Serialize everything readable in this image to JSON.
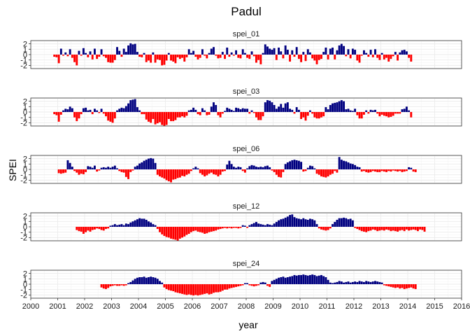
{
  "chart_data": {
    "type": "bar",
    "title": "Padul",
    "xlabel": "year",
    "ylabel": "SPEI",
    "xlim": [
      2000,
      2016
    ],
    "ylim": [
      -2.6,
      2.6
    ],
    "x_ticks": [
      "2000",
      "2001",
      "2002",
      "2003",
      "2004",
      "2005",
      "2006",
      "2007",
      "2008",
      "2009",
      "2010",
      "2011",
      "2012",
      "2013",
      "2014",
      "2015",
      "2016"
    ],
    "y_ticks": [
      "2",
      "1",
      "0",
      "-1",
      "-2"
    ],
    "grid": true,
    "colors": {
      "positive": "#000080",
      "negative": "#ff0000"
    },
    "monthly_start": "2000-11",
    "panels": [
      {
        "name": "spei_01",
        "values": [
          -0.4,
          -0.5,
          -1.6,
          1.1,
          -0.2,
          0.4,
          -0.3,
          1.0,
          -0.6,
          -1.4,
          -2.0,
          0.7,
          -0.2,
          1.2,
          0.3,
          -0.5,
          0.6,
          -0.9,
          1.1,
          -0.8,
          -0.4,
          1.0,
          -0.3,
          -0.6,
          -1.4,
          -1.5,
          -1.5,
          -1.0,
          1.4,
          0.7,
          -0.4,
          1.1,
          0.5,
          1.7,
          2.1,
          1.9,
          2.0,
          0.5,
          -0.4,
          -0.5,
          0.3,
          -1.4,
          -1.1,
          -1.5,
          0.4,
          -1.5,
          -0.9,
          -1.0,
          -2.0,
          -1.9,
          -1.1,
          0.3,
          -1.1,
          -1.3,
          -1.6,
          -0.5,
          -0.8,
          -0.6,
          -1.3,
          -0.5,
          1.0,
          0.3,
          0.7,
          -0.4,
          -0.9,
          -0.6,
          1.0,
          -0.2,
          -0.7,
          0.3,
          1.1,
          1.4,
          -0.2,
          -0.7,
          -0.6,
          0.5,
          -0.8,
          1.3,
          -0.4,
          0.4,
          -0.2,
          0.8,
          -0.6,
          -0.7,
          1.0,
          0.3,
          -0.6,
          -0.8,
          0.6,
          -0.3,
          -1.5,
          -1.0,
          -1.8,
          0.3,
          1.9,
          1.5,
          1.1,
          0.9,
          1.2,
          -1.0,
          1.3,
          0.6,
          -0.7,
          1.7,
          0.9,
          -1.3,
          0.8,
          -0.4,
          1.4,
          -0.8,
          -1.4,
          0.5,
          -1.2,
          1.0,
          0.4,
          -0.7,
          -1.1,
          -1.8,
          -1.0,
          -0.8,
          0.5,
          1.3,
          -0.9,
          1.1,
          1.3,
          -0.9,
          0.8,
          1.7,
          2.0,
          1.6,
          -0.3,
          1.0,
          -0.7,
          1.1,
          0.9,
          -1.1,
          -1.5,
          -0.2,
          0.8,
          0.3,
          -0.4,
          0.9,
          -0.5,
          1.0,
          -0.6,
          -1.0,
          0.3,
          -0.9,
          -0.6,
          -1.3,
          -0.8,
          -0.3,
          0.5,
          -1.1,
          0.4,
          0.8,
          0.9,
          0.6,
          -0.6,
          -1.3
        ]
      },
      {
        "name": "spei_03",
        "values": [
          -0.4,
          -0.6,
          -1.8,
          -0.5,
          0.3,
          0.6,
          0.5,
          1.0,
          0.7,
          -1.0,
          -1.7,
          -1.2,
          -0.4,
          0.7,
          0.8,
          0.3,
          0.4,
          -0.4,
          0.6,
          0.3,
          -0.2,
          0.6,
          -0.3,
          -0.8,
          -1.6,
          -1.8,
          -2.0,
          -1.2,
          0.3,
          0.6,
          0.8,
          0.7,
          1.1,
          1.6,
          2.2,
          2.3,
          2.4,
          0.9,
          0.3,
          -0.4,
          -0.4,
          -1.4,
          -1.8,
          -2.0,
          -1.3,
          -2.3,
          -2.1,
          -1.9,
          -2.4,
          -2.6,
          -2.4,
          -1.3,
          -1.7,
          -1.7,
          -1.5,
          -1.0,
          -1.0,
          -0.8,
          -1.0,
          -0.7,
          0.3,
          0.4,
          0.8,
          0.4,
          -0.4,
          -0.6,
          0.7,
          0.3,
          -0.6,
          -0.5,
          1.0,
          1.8,
          1.3,
          -0.6,
          -1.0,
          -0.3,
          0.2,
          0.8,
          0.6,
          0.4,
          0.2,
          0.8,
          0.7,
          0.5,
          0.7,
          0.6,
          0.6,
          -0.3,
          0.3,
          -0.2,
          -1.0,
          -1.5,
          -1.5,
          -0.8,
          1.8,
          2.2,
          2.1,
          1.8,
          1.3,
          0.6,
          1.0,
          1.5,
          0.8,
          1.6,
          1.8,
          0.6,
          0.4,
          -0.3,
          0.9,
          0.4,
          -1.3,
          -1.0,
          -1.6,
          -0.7,
          0.3,
          -0.3,
          -1.0,
          -1.2,
          -1.2,
          -1.0,
          -0.8,
          0.9,
          0.5,
          1.3,
          1.6,
          1.7,
          1.8,
          2.0,
          2.2,
          2.0,
          0.5,
          0.6,
          0.3,
          0.2,
          0.6,
          -0.6,
          -1.2,
          -1.2,
          -0.5,
          0.3,
          -0.3,
          0.4,
          0.3,
          0.4,
          -0.3,
          -0.8,
          -0.5,
          -0.7,
          -0.8,
          -1.0,
          -0.9,
          -0.7,
          -0.3,
          -0.3,
          -0.3,
          0.5,
          0.6,
          1.0,
          0.3,
          -1.0
        ]
      },
      {
        "name": "spei_06",
        "values": [
          null,
          null,
          -0.7,
          -0.8,
          -0.7,
          -0.6,
          1.7,
          1.2,
          0.5,
          -0.3,
          -0.6,
          -1.0,
          -0.8,
          -0.9,
          -0.5,
          0.6,
          0.5,
          0.3,
          0.7,
          -0.4,
          -0.2,
          0.3,
          0.4,
          0.3,
          0.5,
          0.3,
          0.5,
          0.7,
          0.2,
          -0.3,
          -0.5,
          -0.6,
          -1.4,
          -1.8,
          -0.5,
          -0.2,
          0.5,
          0.7,
          1.1,
          1.3,
          1.6,
          1.8,
          2.0,
          2.1,
          2.0,
          1.2,
          -1.0,
          -1.3,
          -1.5,
          -1.7,
          -2.0,
          -2.2,
          -2.4,
          -1.9,
          -1.8,
          -1.6,
          -1.5,
          -1.2,
          -1.3,
          -1.0,
          -0.8,
          -0.3,
          0.2,
          0.5,
          0.2,
          -0.7,
          -1.0,
          -1.3,
          -1.1,
          -0.8,
          -0.6,
          -0.9,
          -1.0,
          -1.3,
          -1.0,
          -0.4,
          -0.3,
          0.9,
          1.6,
          1.0,
          0.5,
          0.3,
          0.5,
          0.4,
          -0.3,
          -0.6,
          0.2,
          0.6,
          0.8,
          0.7,
          0.5,
          0.4,
          0.5,
          0.4,
          0.6,
          0.7,
          0.4,
          -0.2,
          -0.5,
          -1.0,
          -1.4,
          -1.5,
          -0.5,
          1.0,
          1.3,
          1.5,
          1.7,
          1.8,
          1.7,
          1.6,
          1.4,
          -0.4,
          -0.3,
          0.3,
          0.7,
          0.6,
          0.2,
          -0.8,
          -1.0,
          -1.3,
          -1.4,
          -1.5,
          -1.3,
          -1.0,
          -0.8,
          -0.3,
          -0.6,
          2.3,
          1.8,
          1.6,
          1.5,
          1.3,
          1.1,
          1.0,
          0.8,
          0.5,
          0.4,
          -0.4,
          -0.3,
          -0.5,
          -0.6,
          -0.5,
          -0.3,
          -0.4,
          -0.5,
          -0.5,
          -0.3,
          -0.4,
          -0.5,
          -0.3,
          -0.4,
          -0.2,
          -0.3,
          -0.4,
          -0.3,
          -0.5,
          -0.4,
          -0.3,
          0.4,
          0.3,
          -0.4,
          -0.5
        ]
      },
      {
        "name": "spei_12",
        "values": [
          null,
          null,
          null,
          null,
          null,
          null,
          null,
          null,
          null,
          null,
          -0.6,
          -0.8,
          -0.9,
          -1.3,
          -1.0,
          -0.7,
          -0.9,
          -0.6,
          -0.5,
          -0.3,
          -0.4,
          -0.6,
          -0.7,
          -0.4,
          -0.3,
          0.2,
          0.3,
          0.5,
          0.3,
          0.4,
          0.5,
          0.3,
          0.6,
          0.5,
          0.8,
          1.0,
          1.2,
          1.4,
          1.6,
          1.5,
          1.5,
          1.3,
          1.0,
          0.8,
          0.5,
          0.3,
          -0.4,
          -1.0,
          -1.4,
          -1.7,
          -1.9,
          -2.0,
          -2.2,
          -2.3,
          -2.4,
          -2.6,
          -2.2,
          -2.0,
          -1.8,
          -1.5,
          -1.3,
          -1.0,
          -0.8,
          -0.7,
          -0.9,
          -1.0,
          -1.1,
          -1.3,
          -1.2,
          -1.0,
          -0.9,
          -0.8,
          -0.7,
          -0.5,
          -0.4,
          -0.3,
          -0.2,
          -0.3,
          -0.2,
          -0.3,
          -0.2,
          -0.2,
          -0.3,
          -0.2,
          0.3,
          0.2,
          -0.2,
          0.3,
          0.5,
          0.7,
          0.9,
          0.6,
          0.5,
          0.4,
          0.3,
          0.5,
          0.4,
          0.3,
          0.6,
          0.9,
          1.2,
          1.4,
          1.5,
          1.7,
          1.9,
          2.2,
          2.3,
          1.8,
          1.6,
          1.5,
          1.4,
          1.6,
          1.4,
          1.3,
          1.5,
          1.4,
          1.2,
          0.5,
          -0.3,
          -0.5,
          -0.6,
          -0.7,
          -0.6,
          -0.3,
          0.5,
          0.9,
          1.3,
          1.6,
          1.6,
          1.7,
          1.6,
          1.4,
          1.5,
          1.2,
          -0.2,
          -0.4,
          -0.6,
          -0.8,
          -0.9,
          -1.0,
          -0.8,
          -0.7,
          -0.5,
          -0.6,
          -0.8,
          -0.7,
          -0.6,
          -0.7,
          -0.5,
          -0.6,
          -0.8,
          -0.7,
          -0.8,
          -0.9,
          -0.7,
          -0.6,
          -0.8,
          -0.5,
          -0.7,
          -0.6,
          -0.5,
          -0.6,
          -0.8,
          -0.5,
          -0.6,
          -0.9
        ]
      },
      {
        "name": "spei_24",
        "values": [
          null,
          null,
          null,
          null,
          null,
          null,
          null,
          null,
          null,
          null,
          null,
          null,
          null,
          null,
          null,
          null,
          null,
          null,
          null,
          null,
          null,
          -0.6,
          -0.8,
          -0.9,
          -0.7,
          -0.4,
          -0.3,
          -0.2,
          -0.3,
          -0.3,
          -0.2,
          -0.3,
          -0.2,
          0.2,
          0.4,
          0.7,
          1.0,
          1.2,
          1.3,
          1.3,
          1.4,
          1.2,
          1.3,
          1.4,
          1.3,
          1.2,
          1.0,
          0.6,
          0.3,
          -0.6,
          -0.9,
          -1.1,
          -1.2,
          -1.3,
          -1.5,
          -1.6,
          -1.7,
          -1.8,
          -1.9,
          -2.0,
          -1.9,
          -2.0,
          -2.1,
          -2.0,
          -2.1,
          -2.0,
          -1.9,
          -1.8,
          -1.7,
          -1.9,
          -1.8,
          -1.6,
          -1.5,
          -1.5,
          -1.4,
          -1.2,
          -1.0,
          -1.0,
          -0.8,
          -0.7,
          -0.6,
          -0.5,
          -0.4,
          -0.3,
          -0.2,
          0.2,
          0.2,
          -0.2,
          -0.3,
          -0.4,
          -0.3,
          -0.2,
          0.3,
          0.4,
          0.3,
          -0.3,
          -0.5,
          0.6,
          0.8,
          1.0,
          1.2,
          1.3,
          1.4,
          1.2,
          1.3,
          1.4,
          1.5,
          1.7,
          1.6,
          1.7,
          1.7,
          1.8,
          1.7,
          1.6,
          1.7,
          1.8,
          1.7,
          1.5,
          1.6,
          1.7,
          1.5,
          1.3,
          0.8,
          0.3,
          0.2,
          0.3,
          0.4,
          0.6,
          0.5,
          0.3,
          0.4,
          0.5,
          0.3,
          0.4,
          0.5,
          0.4,
          0.6,
          0.5,
          0.4,
          0.6,
          0.5,
          0.4,
          0.5,
          0.6,
          0.5,
          0.4,
          0.3,
          -0.2,
          -0.3,
          -0.4,
          -0.5,
          -0.6,
          -0.7,
          -0.6,
          -0.8,
          -0.7,
          -0.9,
          -0.8,
          -0.7,
          -0.6,
          -0.8,
          -0.9
        ]
      }
    ]
  }
}
